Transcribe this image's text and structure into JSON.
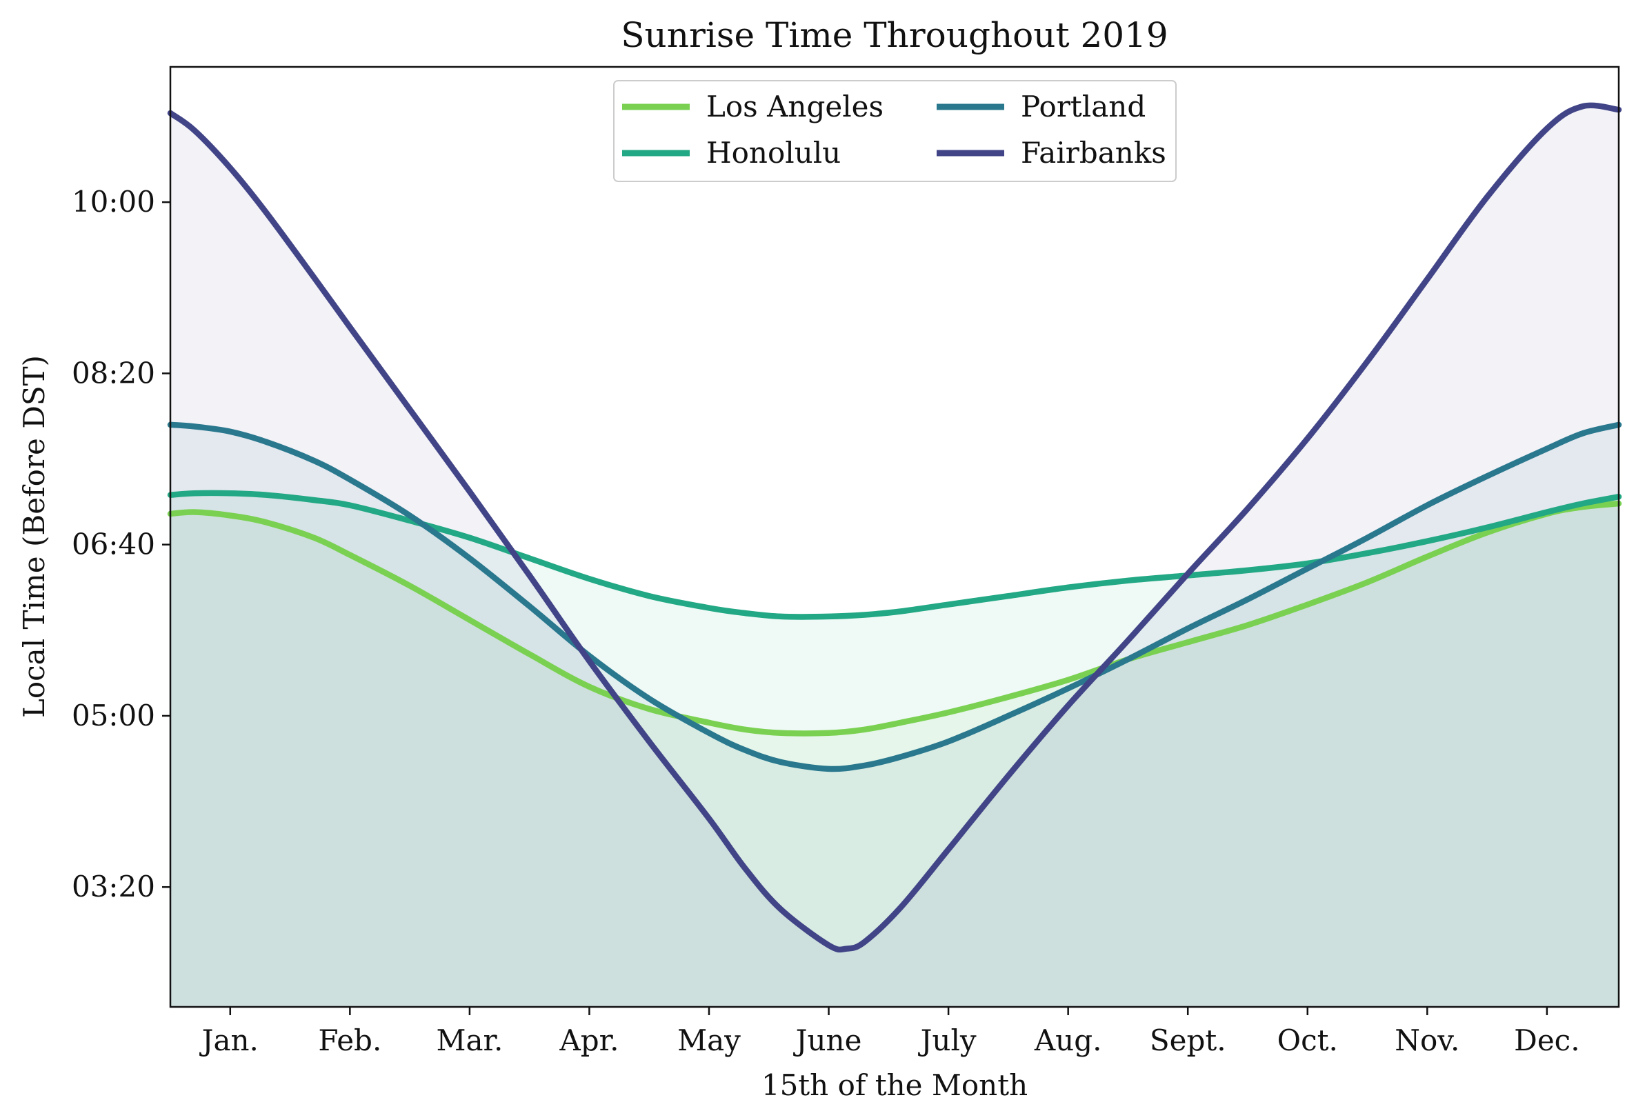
{
  "chart_data": {
    "type": "area",
    "title": "Sunrise Time Throughout 2019",
    "xlabel": "15th of the Month",
    "ylabel": "Local Time (Before DST)",
    "categories": [
      "Jan.",
      "Feb.",
      "Mar.",
      "Apr.",
      "May",
      "June",
      "July",
      "Aug.",
      "Sept.",
      "Oct.",
      "Nov.",
      "Dec."
    ],
    "ytick_values": [
      200,
      300,
      400,
      500,
      600
    ],
    "ytick_labels": [
      "03:20",
      "05:00",
      "06:40",
      "08:20",
      "10:00"
    ],
    "y_unit": "minutes after midnight",
    "xlim": [
      0.5,
      12.6
    ],
    "ylim": [
      130,
      679
    ],
    "grid": false,
    "legend_position": "top-center",
    "series": [
      {
        "name": "Los Angeles",
        "color": "#7ad151",
        "x": [
          0.5,
          0.7,
          1,
          1.3,
          1.7,
          2,
          2.5,
          3,
          3.5,
          4,
          4.5,
          5,
          5.3,
          5.6,
          6,
          6.3,
          6.6,
          7,
          7.5,
          8,
          8.5,
          9,
          9.5,
          10,
          10.5,
          11,
          11.5,
          12,
          12.3,
          12.6
        ],
        "y": [
          418,
          419,
          417,
          413,
          404,
          394,
          376,
          356,
          336,
          317,
          304,
          296,
          292,
          290,
          290,
          292,
          296,
          302,
          311,
          321,
          333,
          343,
          353,
          365,
          378,
          393,
          407,
          418,
          422,
          424
        ]
      },
      {
        "name": "Honolulu",
        "color": "#22a884",
        "x": [
          0.5,
          0.7,
          1,
          1.3,
          1.7,
          2,
          2.5,
          3,
          3.5,
          4,
          4.5,
          5,
          5.3,
          5.6,
          6,
          6.3,
          6.6,
          7,
          7.5,
          8,
          8.5,
          9,
          9.5,
          10,
          10.5,
          11,
          11.5,
          12,
          12.3,
          12.6
        ],
        "y": [
          429,
          430,
          430,
          429,
          426,
          423,
          414,
          404,
          392,
          380,
          370,
          363,
          360,
          358,
          358,
          359,
          361,
          365,
          370,
          375,
          379,
          382,
          385,
          389,
          395,
          402,
          410,
          419,
          424,
          428
        ]
      },
      {
        "name": "Portland",
        "color": "#2a788e",
        "x": [
          0.5,
          0.7,
          1,
          1.3,
          1.7,
          2,
          2.5,
          3,
          3.5,
          4,
          4.5,
          5,
          5.3,
          5.6,
          6,
          6.3,
          6.6,
          7,
          7.5,
          8,
          8.5,
          9,
          9.5,
          10,
          10.5,
          11,
          11.5,
          12,
          12.3,
          12.6
        ],
        "y": [
          470,
          469,
          466,
          460,
          449,
          438,
          417,
          392,
          364,
          335,
          310,
          290,
          280,
          273,
          269,
          271,
          276,
          285,
          300,
          316,
          333,
          351,
          368,
          386,
          404,
          423,
          440,
          456,
          465,
          470
        ]
      },
      {
        "name": "Fairbanks",
        "color": "#414487",
        "x": [
          0.5,
          0.7,
          1,
          1.3,
          1.7,
          2,
          2.5,
          3,
          3.5,
          4,
          4.5,
          5,
          5.3,
          5.6,
          6,
          6.15,
          6.3,
          6.6,
          7,
          7.5,
          8,
          8.5,
          9,
          9.5,
          10,
          10.5,
          11,
          11.5,
          12,
          12.3,
          12.6
        ],
        "y": [
          652,
          642,
          620,
          594,
          556,
          527,
          479,
          431,
          382,
          332,
          285,
          240,
          211,
          187,
          166,
          164,
          168,
          188,
          222,
          265,
          306,
          344,
          383,
          421,
          462,
          507,
          555,
          603,
          643,
          656,
          654
        ]
      }
    ]
  }
}
